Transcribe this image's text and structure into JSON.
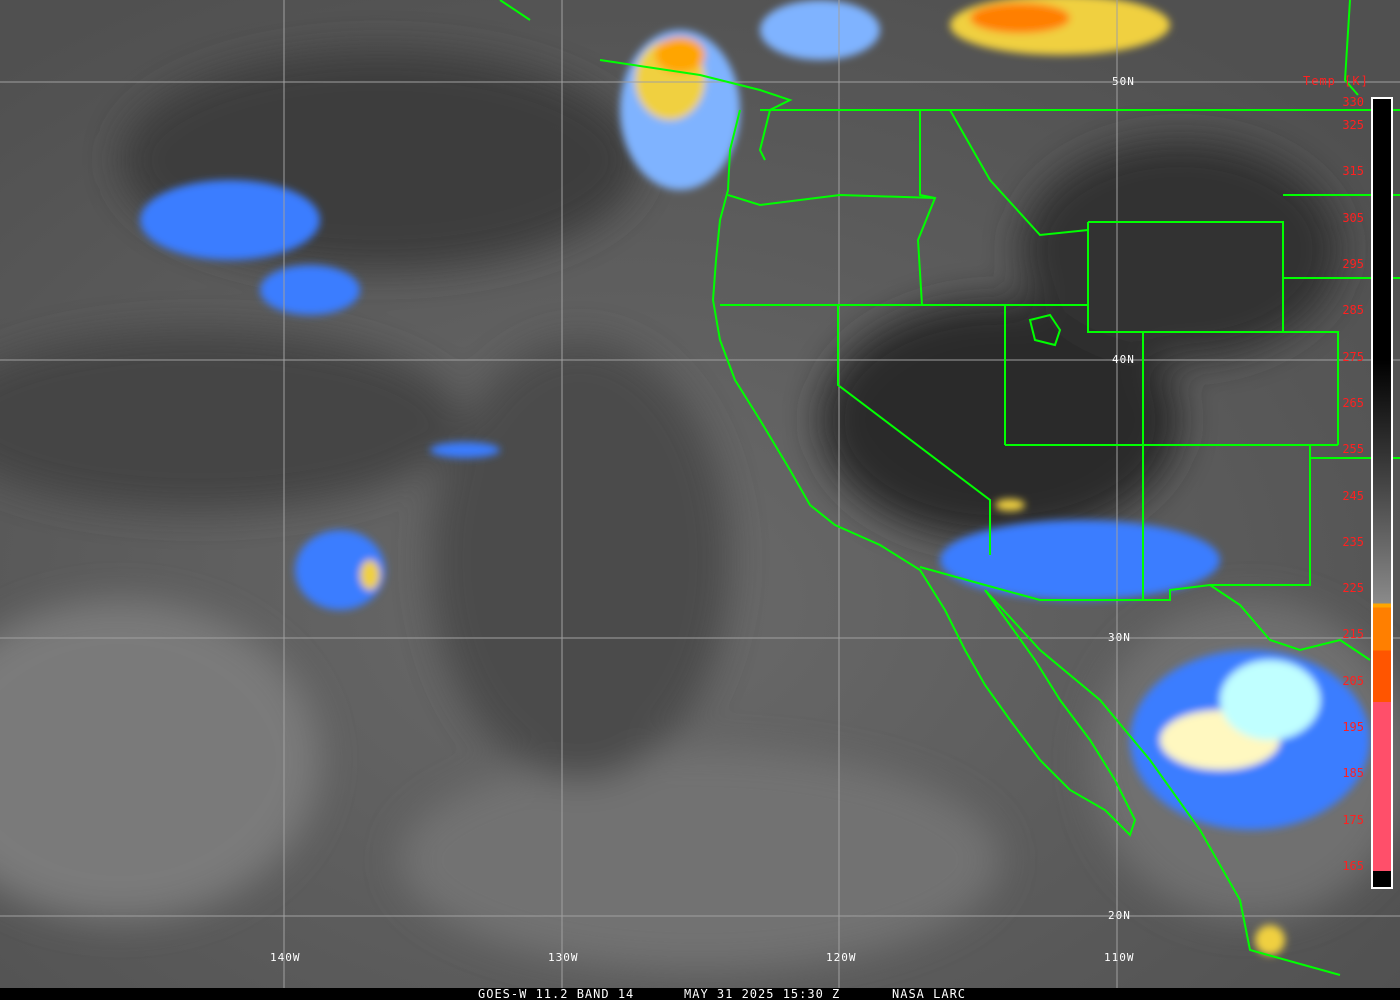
{
  "image": {
    "caption": {
      "satellite": "GOES-W 11.2 BAND 14",
      "datetime": "MAY 31 2025 15:30 Z",
      "source": "NASA LARC"
    },
    "lat_labels": [
      "50N",
      "40N",
      "30N",
      "20N"
    ],
    "lon_labels": [
      "140W",
      "130W",
      "120W",
      "110W"
    ],
    "colorbar": {
      "title": "Temp [K]",
      "ticks": [
        "330",
        "325",
        "315",
        "305",
        "295",
        "285",
        "275",
        "265",
        "255",
        "245",
        "235",
        "225",
        "215",
        "205",
        "195",
        "185",
        "175",
        "165"
      ],
      "colors": {
        "warm_top": "#000000",
        "gray_mid": "#8a8a8a",
        "blue": "#3a7dff",
        "light_blue": "#7fb3ff",
        "cyan": "#c0ffff",
        "pale_yellow": "#fff8c0",
        "yellow": "#f0d040",
        "orange": "#ffa500",
        "dark_orange": "#ff7f00",
        "red_orange": "#ff5500",
        "pink": "#ff4f6a"
      }
    },
    "boundary_color": "#00ff00",
    "grid_color": "#a0a0a0"
  }
}
